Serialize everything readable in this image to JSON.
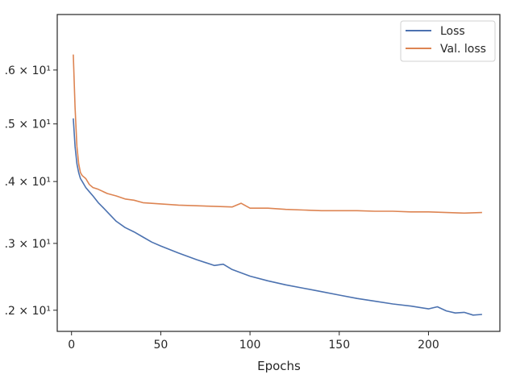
{
  "chart_data": {
    "type": "line",
    "title": "",
    "xlabel": "Epochs",
    "ylabel": "",
    "xlim": [
      -8,
      240
    ],
    "ylim": [
      1.17,
      1.71
    ],
    "yscale": "log",
    "grid": false,
    "legend_position": "top-right",
    "x_ticks": [
      0,
      50,
      100,
      150,
      200
    ],
    "x_tick_labels": [
      "0",
      "50",
      "100",
      "150",
      "200"
    ],
    "y_ticks": [
      1.2,
      1.3,
      1.4,
      1.5,
      1.6
    ],
    "y_tick_labels": [
      ".2 × 10¹",
      ".3 × 10¹",
      ".4 × 10¹",
      ".5 × 10¹",
      ".6 × 10¹"
    ],
    "series": [
      {
        "name": "Loss",
        "color": "#4c72b0",
        "x": [
          1,
          2,
          3,
          4,
          5,
          6,
          8,
          10,
          12,
          15,
          18,
          20,
          25,
          30,
          35,
          40,
          45,
          50,
          60,
          70,
          80,
          85,
          90,
          100,
          110,
          120,
          130,
          140,
          150,
          160,
          170,
          180,
          190,
          200,
          205,
          210,
          215,
          220,
          225,
          230
        ],
        "y": [
          1.51,
          1.46,
          1.43,
          1.415,
          1.405,
          1.4,
          1.39,
          1.383,
          1.376,
          1.365,
          1.356,
          1.35,
          1.335,
          1.325,
          1.318,
          1.31,
          1.302,
          1.296,
          1.285,
          1.275,
          1.266,
          1.268,
          1.26,
          1.25,
          1.243,
          1.237,
          1.232,
          1.227,
          1.222,
          1.217,
          1.213,
          1.209,
          1.206,
          1.202,
          1.205,
          1.199,
          1.196,
          1.197,
          1.193,
          1.194
        ]
      },
      {
        "name": "Val. loss",
        "color": "#dd8452",
        "x": [
          1,
          2,
          3,
          4,
          5,
          6,
          8,
          10,
          12,
          15,
          20,
          25,
          30,
          35,
          40,
          50,
          60,
          70,
          80,
          90,
          95,
          100,
          110,
          120,
          130,
          140,
          150,
          160,
          170,
          180,
          190,
          200,
          210,
          220,
          230
        ],
        "y": [
          1.63,
          1.53,
          1.46,
          1.43,
          1.415,
          1.41,
          1.405,
          1.395,
          1.39,
          1.387,
          1.38,
          1.376,
          1.371,
          1.369,
          1.365,
          1.363,
          1.361,
          1.36,
          1.359,
          1.358,
          1.364,
          1.356,
          1.356,
          1.354,
          1.353,
          1.352,
          1.352,
          1.352,
          1.351,
          1.351,
          1.35,
          1.35,
          1.349,
          1.348,
          1.349
        ]
      }
    ]
  }
}
